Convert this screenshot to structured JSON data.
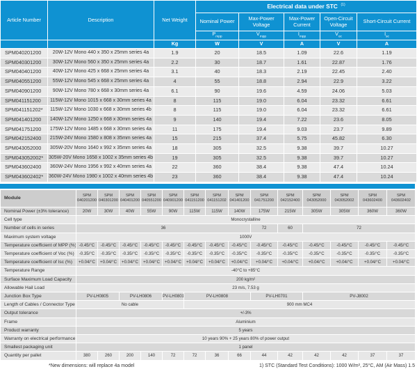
{
  "colors": {
    "header_blue": "#0f92d2"
  },
  "top_table": {
    "article_header": "Article Number",
    "description_header": "Description",
    "net_weight_header": "Net Weight",
    "weight_unit": "Kg",
    "stc_title": "Electrical data under STC",
    "stc_ref": "(1)",
    "columns": [
      {
        "name": "Nominal Power",
        "sym_base": "P",
        "sym_sub": "mpp",
        "unit": "W"
      },
      {
        "name": "Max-Power Voltage",
        "sym_base": "V",
        "sym_sub": "mpp",
        "unit": "V"
      },
      {
        "name": "Max-Power Current",
        "sym_base": "I",
        "sym_sub": "mpp",
        "unit": "A"
      },
      {
        "name": "Open-Circuit Voltage",
        "sym_base": "V",
        "sym_sub": "oc",
        "unit": "V"
      },
      {
        "name": "Short-Circuit Current",
        "sym_base": "I",
        "sym_sub": "sc",
        "unit": "A"
      }
    ],
    "products": [
      {
        "article": "SPM040201200",
        "description": "20W-12V Mono 440 x 350 x 25mm series 4a",
        "weight": "1.9",
        "pmpp": "20",
        "vmpp": "18.5",
        "impp": "1.09",
        "voc": "22.6",
        "isc": "1.19"
      },
      {
        "article": "SPM040301200",
        "description": "30W-12V Mono 560 x 350 x 25mm series 4a",
        "weight": "2.2",
        "pmpp": "30",
        "vmpp": "18.7",
        "impp": "1.61",
        "voc": "22.87",
        "isc": "1.76"
      },
      {
        "article": "SPM040401200",
        "description": "40W-12V Mono 425 x 668 x 25mm series 4a",
        "weight": "3.1",
        "pmpp": "40",
        "vmpp": "18.3",
        "impp": "2.19",
        "voc": "22.45",
        "isc": "2.40"
      },
      {
        "article": "SPM040551200",
        "description": "55W-12V Mono 545 x 668 x 25mm series 4a",
        "weight": "4",
        "pmpp": "55",
        "vmpp": "18.8",
        "impp": "2.94",
        "voc": "22.9",
        "isc": "3.22"
      },
      {
        "article": "SPM040901200",
        "description": "90W-12V Mono 780 x 668 x 30mm series 4a",
        "weight": "6.1",
        "pmpp": "90",
        "vmpp": "19.6",
        "impp": "4.59",
        "voc": "24.06",
        "isc": "5.03"
      },
      {
        "article": "SPM041151200",
        "description": "115W-12V Mono 1015 x 668 x 30mm series 4a",
        "weight": "8",
        "pmpp": "115",
        "vmpp": "19.0",
        "impp": "6.04",
        "voc": "23.32",
        "isc": "6.61"
      },
      {
        "article": "SPM041151202*",
        "description": "115W-12V Mono 1030 x 668 x 30mm series 4b",
        "weight": "8",
        "pmpp": "115",
        "vmpp": "19.0",
        "impp": "6.04",
        "voc": "23.32",
        "isc": "6.61"
      },
      {
        "article": "SPM041401200",
        "description": "140W-12V Mono 1250 x 668 x 30mm series 4a",
        "weight": "9",
        "pmpp": "140",
        "vmpp": "19.4",
        "impp": "7.22",
        "voc": "23.6",
        "isc": "8.05"
      },
      {
        "article": "SPM041751200",
        "description": "175W-12V Mono 1485 x 668 x 30mm series 4a",
        "weight": "11",
        "pmpp": "175",
        "vmpp": "19.4",
        "impp": "9.03",
        "voc": "23.7",
        "isc": "9.89"
      },
      {
        "article": "SPM042152400",
        "description": "215W-24V Mono 1580 x 808 x 35mm series 4a",
        "weight": "15",
        "pmpp": "215",
        "vmpp": "37.4",
        "impp": "5.75",
        "voc": "45.82",
        "isc": "6.30"
      },
      {
        "article": "SPM043052000",
        "description": "305W-20V Mono 1640 x 992 x 35mm series 4a",
        "weight": "18",
        "pmpp": "305",
        "vmpp": "32.5",
        "impp": "9.38",
        "voc": "39.7",
        "isc": "10.27"
      },
      {
        "article": "SPM043052002*",
        "description": "305W-20V Mono 1658 x 1002 x 35mm series 4b",
        "weight": "19",
        "pmpp": "305",
        "vmpp": "32.5",
        "impp": "9.38",
        "voc": "39.7",
        "isc": "10.27"
      },
      {
        "article": "SPM043602400",
        "description": "360W-24V Mono 1956 x 992 x 40mm series 4a",
        "weight": "22",
        "pmpp": "360",
        "vmpp": "38.4",
        "impp": "9.38",
        "voc": "47.4",
        "isc": "10.24"
      },
      {
        "article": "SPM043602402*",
        "description": "360W-24V Mono 1980 x 1002 x 40mm series 4b",
        "weight": "23",
        "pmpp": "360",
        "vmpp": "38.4",
        "impp": "9.38",
        "voc": "47.4",
        "isc": "10.24"
      }
    ]
  },
  "specs_table": {
    "module_label": "Module",
    "modules": [
      "040201200",
      "040301200",
      "040401200",
      "040551200",
      "040901200",
      "041151200",
      "041151202",
      "041401200",
      "041751200",
      "042152400",
      "043052000",
      "043052002",
      "043602400",
      "043602402"
    ],
    "module_prefix": "SPM",
    "rows": [
      {
        "label": "Nominal Power  (±3% tolerance)",
        "cells": [
          {
            "text": "20W",
            "span": 1
          },
          {
            "text": "30W",
            "span": 1
          },
          {
            "text": "40W",
            "span": 1
          },
          {
            "text": "55W",
            "span": 1
          },
          {
            "text": "90W",
            "span": 1
          },
          {
            "text": "115W",
            "span": 1
          },
          {
            "text": "115W",
            "span": 1
          },
          {
            "text": "140W",
            "span": 1
          },
          {
            "text": "175W",
            "span": 1
          },
          {
            "text": "215W",
            "span": 1
          },
          {
            "text": "305W",
            "span": 1
          },
          {
            "text": "305W",
            "span": 1
          },
          {
            "text": "360W",
            "span": 1
          },
          {
            "text": "360W",
            "span": 1
          }
        ]
      },
      {
        "label": "Cell type",
        "cells": [
          {
            "text": "Monocrystalline",
            "span": 14
          }
        ]
      },
      {
        "label": "Number of cells in series",
        "cells": [
          {
            "text": "36",
            "span": 8
          },
          {
            "text": "72",
            "span": 1
          },
          {
            "text": "60",
            "span": 1
          },
          {
            "text": "72",
            "span": 4
          }
        ]
      },
      {
        "label": "Maximum system voltage",
        "cells": [
          {
            "text": "1000V",
            "span": 14
          }
        ]
      },
      {
        "label": "Temperature coefficient of MPP (%)",
        "cells": [
          {
            "text": "-0.45/°C",
            "span": 1
          },
          {
            "text": "-0.45/°C",
            "span": 1
          },
          {
            "text": "-0.45/°C",
            "span": 1
          },
          {
            "text": "-0.45/°C",
            "span": 1
          },
          {
            "text": "-0.45/°C",
            "span": 1
          },
          {
            "text": "-0.45/°C",
            "span": 1
          },
          {
            "text": "-0.45/°C",
            "span": 1
          },
          {
            "text": "-0.45/°C",
            "span": 1
          },
          {
            "text": "-0.45/°C",
            "span": 1
          },
          {
            "text": "-0.45/°C",
            "span": 1
          },
          {
            "text": "-0.45/°C",
            "span": 1
          },
          {
            "text": "-0.45/°C",
            "span": 1
          },
          {
            "text": "-0.45/°C",
            "span": 1
          },
          {
            "text": "-0.45/°C",
            "span": 1
          }
        ]
      },
      {
        "label": "Temperature coefficient of Voc (%)",
        "cells": [
          {
            "text": "-0.35/°C",
            "span": 1
          },
          {
            "text": "-0.35/°C",
            "span": 1
          },
          {
            "text": "-0.35/°C",
            "span": 1
          },
          {
            "text": "-0.35/°C",
            "span": 1
          },
          {
            "text": "-0.35/°C",
            "span": 1
          },
          {
            "text": "-0.35/°C",
            "span": 1
          },
          {
            "text": "-0.35/°C",
            "span": 1
          },
          {
            "text": "-0.35/°C",
            "span": 1
          },
          {
            "text": "-0.35/°C",
            "span": 1
          },
          {
            "text": "-0.35/°C",
            "span": 1
          },
          {
            "text": "-0.35/°C",
            "span": 1
          },
          {
            "text": "-0.35/°C",
            "span": 1
          },
          {
            "text": "-0.35/°C",
            "span": 1
          },
          {
            "text": "-0.35/°C",
            "span": 1
          }
        ]
      },
      {
        "label": "Temperature coefficient of Isc (%)",
        "cells": [
          {
            "text": "+0.04/°C",
            "span": 1
          },
          {
            "text": "+0.04/°C",
            "span": 1
          },
          {
            "text": "+0.04/°C",
            "span": 1
          },
          {
            "text": "+0.04/°C",
            "span": 1
          },
          {
            "text": "+0.04/°C",
            "span": 1
          },
          {
            "text": "+0.04/°C",
            "span": 1
          },
          {
            "text": "+0.04/°C",
            "span": 1
          },
          {
            "text": "+0.04/°C",
            "span": 1
          },
          {
            "text": "+0.04/°C",
            "span": 1
          },
          {
            "text": "+0.04/°C",
            "span": 1
          },
          {
            "text": "+0.04/°C",
            "span": 1
          },
          {
            "text": "+0.04/°C",
            "span": 1
          },
          {
            "text": "+0.04/°C",
            "span": 1
          },
          {
            "text": "+0.04/°C",
            "span": 1
          }
        ]
      },
      {
        "label": "Temperature Range",
        "cells": [
          {
            "text": "-40°C to +85°C",
            "span": 14
          }
        ]
      },
      {
        "label": "Surface Maximum Load Capacity",
        "cells": [
          {
            "text": "200 kg/m²",
            "span": 14
          }
        ]
      },
      {
        "label": "Allowable Hail Load",
        "cells": [
          {
            "text": "23 m/s, 7.53 g",
            "span": 14
          }
        ]
      },
      {
        "label": "Junction Box Type",
        "cells": [
          {
            "text": "PV-LH0805",
            "span": 2
          },
          {
            "text": "PV-LH0806",
            "span": 2
          },
          {
            "text": "PV-LH0801",
            "span": 1
          },
          {
            "text": "PV-LH0808",
            "span": 3
          },
          {
            "text": "PV-LH0701",
            "span": 2
          },
          {
            "text": "PV-J8002",
            "span": 4
          }
        ]
      },
      {
        "label": "Length of Cables / Connector Type",
        "cells": [
          {
            "text": "No cable",
            "span": 5
          },
          {
            "text": "900 mm MC4",
            "span": 9
          }
        ]
      },
      {
        "label": "Output tolerance",
        "cells": [
          {
            "text": "+/-3%",
            "span": 14
          }
        ]
      },
      {
        "label": "Frame",
        "cells": [
          {
            "text": "Aluminium",
            "span": 14
          }
        ]
      },
      {
        "label": "Product warranty",
        "cells": [
          {
            "text": "5 years",
            "span": 14
          }
        ]
      },
      {
        "label": "Warranty on electrical performance",
        "cells": [
          {
            "text": "10 years 90% + 25 years 80% of power output",
            "span": 14
          }
        ]
      },
      {
        "label": "Smallest packaging unit",
        "cells": [
          {
            "text": "1 panel",
            "span": 14
          }
        ]
      },
      {
        "label": "Quantity per pallet",
        "cells": [
          {
            "text": "380",
            "span": 1
          },
          {
            "text": "260",
            "span": 1
          },
          {
            "text": "200",
            "span": 1
          },
          {
            "text": "140",
            "span": 1
          },
          {
            "text": "72",
            "span": 1
          },
          {
            "text": "72",
            "span": 1
          },
          {
            "text": "36",
            "span": 1
          },
          {
            "text": "66",
            "span": 1
          },
          {
            "text": "44",
            "span": 1
          },
          {
            "text": "42",
            "span": 1
          },
          {
            "text": "42",
            "span": 1
          },
          {
            "text": "42",
            "span": 1
          },
          {
            "text": "37",
            "span": 1
          },
          {
            "text": "37",
            "span": 1
          }
        ]
      }
    ]
  },
  "footnotes": {
    "left": "*New dimensions: will replace 4a model",
    "right": "1) STC (Standard Test Conditions): 1000 W/m², 25°C, AM (Air Mass) 1.5"
  }
}
